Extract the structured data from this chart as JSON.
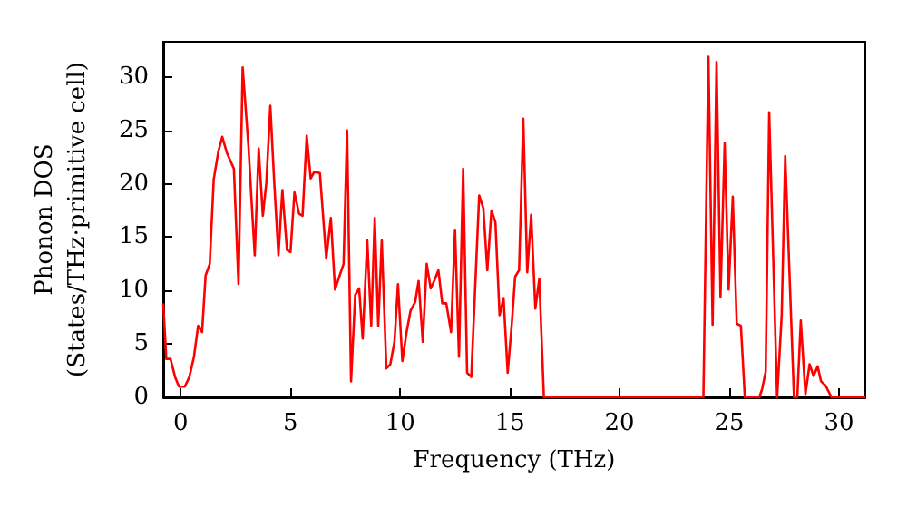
{
  "chart_data": {
    "type": "line",
    "xlabel": "Frequency (THz)",
    "ylabel": "Phonon DOS\n(States/THz·primitive cell)",
    "xlim": [
      -0.8,
      31.2
    ],
    "ylim": [
      0,
      33.3
    ],
    "xticks": [
      0,
      5,
      10,
      15,
      20,
      25,
      30
    ],
    "yticks": [
      0,
      5,
      10,
      15,
      20,
      25,
      30
    ],
    "grid": false,
    "marker": "none",
    "line_style": "solid",
    "series": [
      {
        "color": "#ff0000",
        "x": [
          -0.8,
          -0.66,
          -0.47,
          -0.26,
          -0.08,
          0.18,
          0.39,
          0.6,
          0.79,
          0.97,
          1.13,
          1.32,
          1.5,
          1.71,
          1.89,
          2.1,
          2.42,
          2.63,
          2.82,
          3.08,
          3.37,
          3.55,
          3.74,
          3.9,
          4.08,
          4.26,
          4.45,
          4.63,
          4.84,
          5.0,
          5.18,
          5.39,
          5.55,
          5.74,
          5.92,
          6.08,
          6.34,
          6.63,
          6.84,
          7.03,
          7.24,
          7.42,
          7.58,
          7.76,
          7.95,
          8.13,
          8.29,
          8.5,
          8.68,
          8.84,
          9.0,
          9.16,
          9.37,
          9.55,
          9.74,
          9.9,
          10.1,
          10.29,
          10.47,
          10.68,
          10.84,
          11.03,
          11.21,
          11.39,
          11.55,
          11.74,
          11.92,
          12.1,
          12.32,
          12.5,
          12.68,
          12.87,
          13.05,
          13.24,
          13.42,
          13.6,
          13.79,
          13.97,
          14.16,
          14.34,
          14.53,
          14.71,
          14.9,
          15.08,
          15.24,
          15.42,
          15.61,
          15.79,
          15.97,
          16.16,
          16.34,
          16.55,
          23.82,
          24.05,
          24.24,
          24.42,
          24.6,
          24.79,
          24.97,
          25.16,
          25.34,
          25.53,
          25.71,
          26.37,
          26.5,
          26.66,
          26.82,
          27.18,
          27.39,
          27.55,
          27.95,
          28.1,
          28.26,
          28.47,
          28.66,
          28.84,
          29.03,
          29.18,
          29.39,
          29.66,
          31.2
        ],
        "values": [
          8.8,
          3.6,
          3.6,
          1.9,
          1.0,
          1.0,
          1.9,
          3.8,
          6.7,
          6.1,
          11.4,
          12.5,
          20.4,
          23.0,
          24.4,
          22.9,
          21.4,
          10.6,
          30.9,
          23.6,
          13.3,
          23.3,
          17.0,
          20.1,
          27.3,
          20.1,
          13.3,
          19.4,
          13.8,
          13.6,
          19.2,
          17.2,
          17.0,
          24.5,
          20.5,
          21.1,
          21.0,
          13.0,
          16.8,
          10.1,
          11.4,
          12.5,
          25.0,
          1.5,
          9.6,
          10.2,
          5.5,
          14.7,
          6.7,
          16.8,
          6.7,
          14.7,
          2.7,
          3.1,
          5.2,
          10.6,
          3.4,
          6.1,
          8.1,
          8.9,
          10.9,
          5.2,
          12.5,
          10.2,
          10.9,
          11.9,
          8.8,
          8.8,
          6.1,
          15.7,
          3.8,
          21.4,
          2.3,
          1.9,
          10.4,
          18.9,
          17.7,
          11.9,
          17.5,
          16.4,
          7.7,
          9.3,
          2.3,
          6.7,
          11.3,
          11.9,
          26.1,
          11.7,
          17.1,
          8.3,
          11.1,
          0,
          0,
          31.9,
          6.8,
          31.4,
          9.4,
          23.8,
          10.1,
          18.8,
          6.9,
          6.7,
          0,
          0,
          0.8,
          2.4,
          26.7,
          0,
          7.7,
          22.6,
          0,
          0,
          7.2,
          0.3,
          3.1,
          2.0,
          2.9,
          1.5,
          1.1,
          0,
          0
        ]
      }
    ]
  }
}
